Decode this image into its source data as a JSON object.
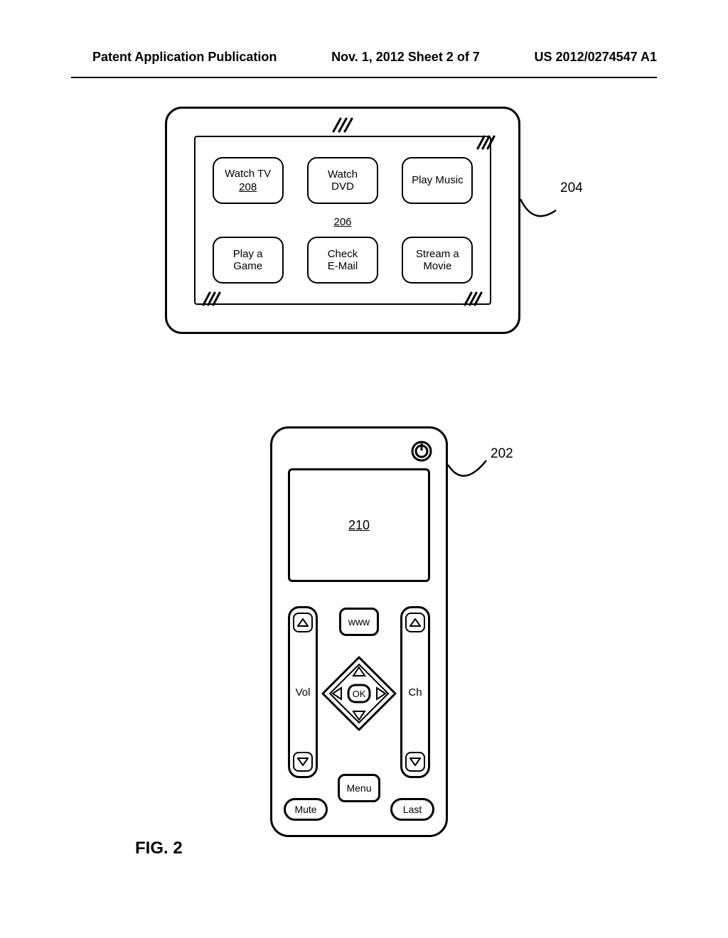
{
  "header": {
    "left": "Patent Application Publication",
    "middle": "Nov. 1, 2012  Sheet 2 of 7",
    "right": "US 2012/0274547 A1"
  },
  "tv": {
    "ref_204": "204",
    "center_ref": "206",
    "tiles": [
      {
        "line1": "Watch TV",
        "line2": "",
        "ref": "208"
      },
      {
        "line1": "Watch",
        "line2": "DVD",
        "ref": ""
      },
      {
        "line1": "Play Music",
        "line2": "",
        "ref": ""
      },
      {
        "line1": "Play a",
        "line2": "Game",
        "ref": ""
      },
      {
        "line1": "Check",
        "line2": "E-Mail",
        "ref": ""
      },
      {
        "line1": "Stream a",
        "line2": "Movie",
        "ref": ""
      }
    ]
  },
  "remote": {
    "ref_202": "202",
    "screen_ref": "210",
    "www": "www",
    "vol": "Vol",
    "ch": "Ch",
    "ok": "OK",
    "menu": "Menu",
    "mute": "Mute",
    "last": "Last"
  },
  "figure_label": "FIG. 2",
  "style": {
    "stroke": "#000000",
    "stroke_width": 3,
    "background": "#ffffff",
    "font_family": "Arial, Helvetica, sans-serif",
    "tile_border_radius": 14,
    "remote_border_radius": 26
  }
}
